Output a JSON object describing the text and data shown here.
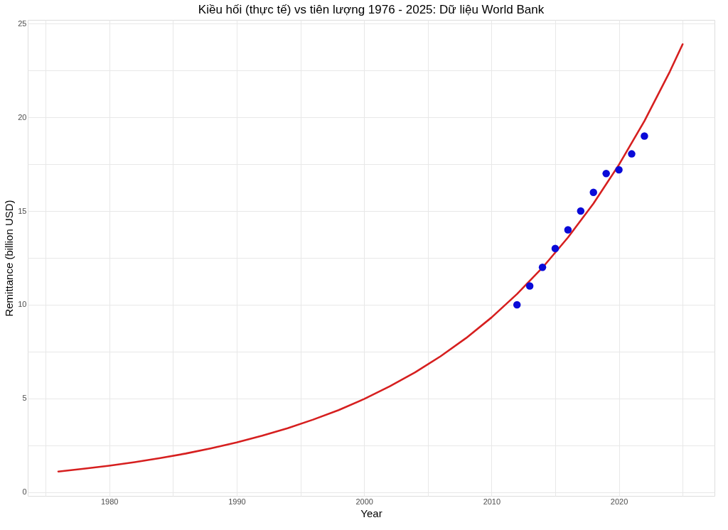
{
  "chart_data": {
    "type": "scatter",
    "title": "Kiều hối (thực tế) vs tiên lượng 1976 - 2025: Dữ liệu World Bank",
    "xlabel": "Year",
    "ylabel": "Remittance (billion USD)",
    "xlim": [
      1973.6,
      2027.5
    ],
    "ylim": [
      -0.2,
      25.2
    ],
    "xticks": [
      {
        "value": 1975,
        "label": null
      },
      1980,
      {
        "value": 1985,
        "label": null
      },
      1990,
      {
        "value": 1995,
        "label": null
      },
      2000,
      {
        "value": 2005,
        "label": null
      },
      2010,
      {
        "value": 2015,
        "label": null
      },
      2020,
      {
        "value": 2025,
        "label": null
      }
    ],
    "yticks": [
      0,
      {
        "value": 2.5,
        "label": null
      },
      5,
      {
        "value": 7.5,
        "label": null
      },
      10,
      {
        "value": 12.5,
        "label": null
      },
      15,
      {
        "value": 17.5,
        "label": null
      },
      20,
      {
        "value": 22.5,
        "label": null
      },
      25
    ],
    "grid": true,
    "series": [
      {
        "type": "line",
        "color": "#d61f1f",
        "line_style": "solid",
        "marker": "none",
        "x": [
          1976,
          1978,
          1980,
          1982,
          1984,
          1986,
          1988,
          1990,
          1992,
          1994,
          1996,
          1998,
          2000,
          2002,
          2004,
          2006,
          2008,
          2010,
          2012,
          2014,
          2016,
          2018,
          2020,
          2022,
          2024,
          2025
        ],
        "values": [
          1.1,
          1.25,
          1.41,
          1.6,
          1.82,
          2.06,
          2.34,
          2.65,
          3.01,
          3.41,
          3.87,
          4.38,
          4.97,
          5.64,
          6.39,
          7.25,
          8.22,
          9.32,
          10.57,
          11.98,
          13.59,
          15.4,
          17.47,
          19.8,
          22.45,
          23.9
        ]
      },
      {
        "color": "#0a0ad8",
        "marker": "circle",
        "x": [
          2012,
          2013,
          2014,
          2015,
          2016,
          2017,
          2018,
          2019,
          2020,
          2021,
          2022
        ],
        "values": [
          10,
          11,
          12,
          13,
          14,
          15,
          16,
          17,
          17.2,
          18.05,
          19
        ]
      }
    ]
  }
}
